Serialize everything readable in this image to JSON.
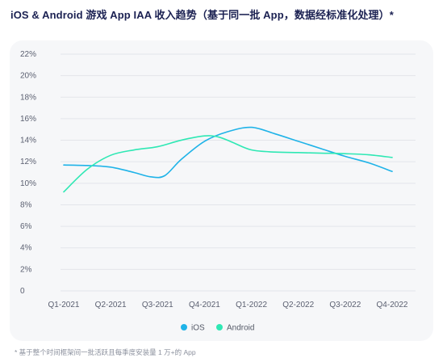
{
  "header": {
    "title": "iOS & Android 游戏 App IAA 收入趋势（基于同一批 App，数据经标准化处理）*"
  },
  "footnote": "* 基于整个时间框架间一批活跃且每季度安装量 1 万+的 App",
  "chart_data": {
    "type": "line",
    "categories": [
      "Q1-2021",
      "Q2-2021",
      "Q3-2021",
      "Q4-2021",
      "Q1-2022",
      "Q2-2022",
      "Q3-2022",
      "Q4-2022"
    ],
    "y_ticks": [
      "0",
      "2%",
      "4%",
      "6%",
      "8%",
      "10%",
      "12%",
      "14%",
      "16%",
      "18%",
      "20%",
      "22%"
    ],
    "ylim": [
      0,
      22
    ],
    "grid": true,
    "legend_position": "bottom-center",
    "series": [
      {
        "name": "iOS",
        "color": "#1fb3e8",
        "x": [
          0.0,
          0.5,
          1.0,
          1.5,
          1.85,
          2.15,
          2.5,
          3.0,
          3.5,
          4.0,
          4.5,
          5.0,
          5.5,
          6.0,
          6.5,
          7.0
        ],
        "values": [
          11.7,
          11.65,
          11.5,
          11.0,
          10.6,
          10.7,
          12.2,
          13.9,
          14.8,
          15.2,
          14.6,
          13.9,
          13.2,
          12.5,
          11.9,
          11.1
        ]
      },
      {
        "name": "Android",
        "color": "#2fe8b4",
        "x": [
          0.0,
          0.5,
          1.0,
          1.5,
          2.0,
          2.5,
          3.0,
          3.3,
          3.6,
          4.0,
          4.5,
          5.0,
          5.5,
          6.0,
          6.5,
          7.0
        ],
        "values": [
          9.2,
          11.3,
          12.6,
          13.1,
          13.4,
          14.0,
          14.4,
          14.3,
          13.8,
          13.1,
          12.9,
          12.85,
          12.8,
          12.75,
          12.65,
          12.4
        ]
      }
    ]
  }
}
